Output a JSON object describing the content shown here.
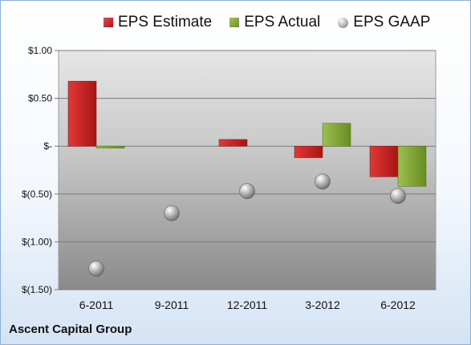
{
  "legend": {
    "estimate": "EPS Estimate",
    "actual": "EPS Actual",
    "gaap": "EPS GAAP"
  },
  "company": "Ascent Capital Group",
  "colors": {
    "estimate": "#c81e1e",
    "actual": "#7fa535",
    "gaap": "#9a9a9a"
  },
  "chart_data": {
    "type": "bar",
    "categories": [
      "6-2011",
      "9-2011",
      "12-2011",
      "3-2012",
      "6-2012"
    ],
    "yticks": [
      "$1.00",
      "$0.50",
      "$-",
      "$(0.50)",
      "$(1.00)",
      "$(1.50)"
    ],
    "ylim": [
      -1.5,
      1.0
    ],
    "grid": true,
    "legend_position": "top",
    "series": [
      {
        "name": "EPS Estimate",
        "type": "bar",
        "values": [
          0.68,
          null,
          0.07,
          -0.12,
          -0.32
        ]
      },
      {
        "name": "EPS Actual",
        "type": "bar",
        "values": [
          -0.02,
          null,
          null,
          0.24,
          -0.42
        ]
      },
      {
        "name": "EPS GAAP",
        "type": "scatter",
        "values": [
          -1.28,
          -0.7,
          -0.47,
          -0.37,
          -0.52
        ]
      }
    ]
  }
}
